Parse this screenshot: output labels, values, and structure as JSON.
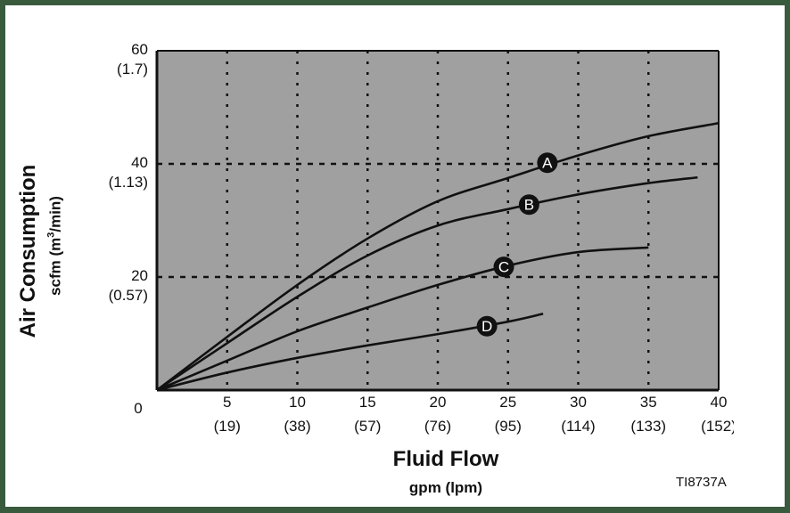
{
  "chart_data": {
    "type": "line",
    "title": "",
    "xlabel": "Fluid Flow",
    "xlabel_units": "gpm (lpm)",
    "ylabel": "Air Consumption",
    "ylabel_units_prefix": "scfm (m",
    "ylabel_units_sup": "3",
    "ylabel_units_suffix": "/min)",
    "xlim": [
      0,
      40
    ],
    "ylim": [
      0,
      60
    ],
    "grid": true,
    "grid_style": "dotted",
    "plot_background": "#a0a0a0",
    "x_ticks": [
      {
        "value": 0,
        "label": "0",
        "sub": ""
      },
      {
        "value": 5,
        "label": "5",
        "sub": "(19)"
      },
      {
        "value": 10,
        "label": "10",
        "sub": "(38)"
      },
      {
        "value": 15,
        "label": "15",
        "sub": "(57)"
      },
      {
        "value": 20,
        "label": "20",
        "sub": "(76)"
      },
      {
        "value": 25,
        "label": "25",
        "sub": "(95)"
      },
      {
        "value": 30,
        "label": "30",
        "sub": "(114)"
      },
      {
        "value": 35,
        "label": "35",
        "sub": "(133)"
      },
      {
        "value": 40,
        "label": "40",
        "sub": "(152)"
      }
    ],
    "y_ticks": [
      {
        "value": 20,
        "label": "20",
        "sub": "(0.57)"
      },
      {
        "value": 40,
        "label": "40",
        "sub": "(1.13)"
      },
      {
        "value": 60,
        "label": "60",
        "sub": "(1.7)"
      }
    ],
    "series": [
      {
        "name": "A",
        "x": [
          0,
          5,
          10,
          15,
          20,
          25,
          30,
          35,
          40
        ],
        "values": [
          0,
          9.4,
          18.6,
          26.8,
          33.4,
          37.5,
          41.5,
          44.9,
          47.2
        ],
        "label_at": [
          27.8,
          40.2
        ]
      },
      {
        "name": "B",
        "x": [
          0,
          5,
          10,
          15,
          20,
          25,
          30,
          35,
          38.5
        ],
        "values": [
          0,
          8.3,
          16.5,
          23.8,
          29.1,
          32.0,
          34.6,
          36.6,
          37.6
        ],
        "label_at": [
          26.5,
          32.8
        ]
      },
      {
        "name": "C",
        "x": [
          0,
          5,
          10,
          15,
          20,
          25,
          30,
          35
        ],
        "values": [
          0,
          5.2,
          10.4,
          14.6,
          18.6,
          22.0,
          24.4,
          25.2
        ],
        "label_at": [
          24.7,
          21.8
        ]
      },
      {
        "name": "D",
        "x": [
          0,
          5,
          10,
          15,
          20,
          25,
          27.5
        ],
        "values": [
          0,
          3.1,
          5.7,
          7.9,
          9.9,
          12.1,
          13.5
        ],
        "label_at": [
          23.5,
          11.3
        ]
      }
    ]
  },
  "figure_id": "TI8737A"
}
